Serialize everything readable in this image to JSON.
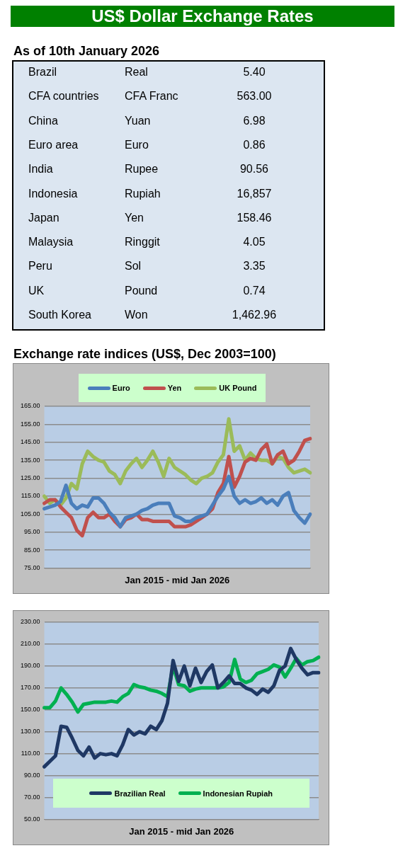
{
  "chart_data": [
    {
      "type": "other",
      "title": "US$ Dollar Exchange Rates",
      "subtitle": "As of 10th January 2026",
      "annotations": [
        "Brazil",
        "Real",
        "5.40",
        "CFA countries",
        "CFA Franc",
        "563.00",
        "China",
        "Yuan",
        "6.98",
        "Euro area",
        "Euro",
        "0.86",
        "India",
        "Rupee",
        "90.56",
        "Indonesia",
        "Rupiah",
        "16,857",
        "Japan",
        "Yen",
        "158.46",
        "Malaysia",
        "Ringgit",
        "4.05",
        "Peru",
        "Sol",
        "3.35",
        "UK",
        "Pound",
        "0.74",
        "South Korea",
        "Won",
        "1,462.96"
      ]
    },
    {
      "type": "line",
      "title": "Exchange rate indices (US$, Dec 2003=100)",
      "xlabel": "Jan 2015 - mid Jan 2026",
      "categories": [
        null,
        null,
        null,
        null,
        null,
        null,
        null,
        null,
        null,
        null,
        null,
        null,
        null,
        null,
        null,
        null,
        null,
        null,
        null,
        null,
        null,
        null,
        null,
        null,
        null,
        null,
        null,
        null,
        null,
        null,
        null,
        null,
        null,
        null,
        null,
        null,
        null,
        null,
        null,
        null,
        null,
        null,
        null,
        null,
        null,
        null,
        null,
        null,
        null,
        null
      ],
      "series": [
        {
          "name": "Euro",
          "color": "#4a7ebb",
          "values": [
            108,
            109,
            110,
            112,
            121,
            111,
            108,
            110,
            109,
            114,
            114,
            111,
            106,
            103,
            98,
            103,
            104,
            105,
            107,
            108,
            110,
            111,
            111,
            111,
            104,
            103,
            101,
            101,
            103,
            104,
            105,
            110,
            115,
            119,
            126,
            115,
            111,
            113,
            111,
            112,
            114,
            111,
            113,
            110,
            115,
            117,
            107,
            103,
            100,
            105
          ]
        },
        {
          "name": "Yen",
          "color": "#c0504d",
          "values": [
            111,
            113,
            113,
            109,
            106,
            103,
            96,
            93,
            103,
            106,
            103,
            103,
            105,
            101,
            98,
            102,
            103,
            105,
            102,
            102,
            101,
            101,
            101,
            101,
            98,
            98,
            98,
            99,
            101,
            103,
            105,
            108,
            117,
            122,
            137,
            120,
            126,
            134,
            136,
            135,
            141,
            144,
            133,
            138,
            140,
            133,
            135,
            140,
            146,
            147
          ]
        },
        {
          "name": "UK Pound",
          "color": "#9bbb59",
          "values": [
            115,
            111,
            113,
            110,
            114,
            122,
            119,
            133,
            140,
            137,
            135,
            134,
            129,
            127,
            122,
            129,
            133,
            136,
            131,
            135,
            140,
            134,
            126,
            136,
            131,
            129,
            127,
            124,
            122,
            125,
            126,
            128,
            134,
            138,
            158,
            140,
            143,
            135,
            139,
            136,
            135,
            135,
            133,
            137,
            136,
            131,
            128,
            129,
            130,
            128
          ]
        }
      ],
      "ylim": [
        75,
        165
      ],
      "yticks": [
        {
          "value": 75,
          "label": "75.00"
        },
        {
          "value": 85,
          "label": "85.00"
        },
        {
          "value": 95,
          "label": "95.00"
        },
        {
          "value": 105,
          "label": "105.00"
        },
        {
          "value": 115,
          "label": "115.00"
        },
        {
          "value": 125,
          "label": "125.00"
        },
        {
          "value": 135,
          "label": "135.00"
        },
        {
          "value": 145,
          "label": "145.00"
        },
        {
          "value": 155,
          "label": "155.00"
        },
        {
          "value": 165,
          "label": "165.00"
        }
      ],
      "grid": "y",
      "legend": "top",
      "tick_labels": "y"
    },
    {
      "type": "line",
      "xlabel": "Jan 2015 - mid Jan 2026",
      "categories": [
        null,
        null,
        null,
        null,
        null,
        null,
        null,
        null,
        null,
        null,
        null,
        null,
        null,
        null,
        null,
        null,
        null,
        null,
        null,
        null,
        null,
        null,
        null,
        null,
        null,
        null,
        null,
        null,
        null,
        null,
        null,
        null,
        null,
        null,
        null,
        null,
        null,
        null,
        null,
        null,
        null,
        null,
        null,
        null,
        null,
        null,
        null,
        null,
        null,
        null
      ],
      "series": [
        {
          "name": "Brazilian Real",
          "color": "#1f3864",
          "values": [
            98,
            103,
            108,
            135,
            134,
            124,
            113,
            108,
            116,
            106,
            110,
            109,
            110,
            108,
            118,
            132,
            127,
            130,
            128,
            135,
            132,
            140,
            156,
            195,
            176,
            190,
            172,
            188,
            175,
            185,
            191,
            170,
            175,
            181,
            174,
            174,
            170,
            168,
            164,
            169,
            166,
            172,
            186,
            190,
            206,
            196,
            188,
            182,
            184,
            184
          ]
        },
        {
          "name": "Indonesian Rupiah",
          "color": "#00b050",
          "values": [
            152,
            152,
            158,
            170,
            164,
            157,
            148,
            155,
            156,
            157,
            157,
            157,
            158,
            157,
            162,
            165,
            173,
            171,
            170,
            168,
            167,
            165,
            162,
            190,
            173,
            172,
            167,
            169,
            170,
            170,
            170,
            170,
            171,
            175,
            196,
            178,
            175,
            177,
            183,
            185,
            187,
            191,
            189,
            180,
            188,
            197,
            191,
            194,
            195,
            198
          ]
        }
      ],
      "ylim": [
        50,
        230
      ],
      "yticks": [
        {
          "value": 50,
          "label": "50.00"
        },
        {
          "value": 70,
          "label": "70.00"
        },
        {
          "value": 90,
          "label": "90.00"
        },
        {
          "value": 110,
          "label": "110.00"
        },
        {
          "value": 130,
          "label": "130.00"
        },
        {
          "value": 150,
          "label": "150.00"
        },
        {
          "value": 170,
          "label": "170.00"
        },
        {
          "value": 190,
          "label": "190.00"
        },
        {
          "value": 210,
          "label": "210.00"
        },
        {
          "value": 230,
          "label": "230.00"
        }
      ],
      "grid": "y",
      "legend": "bottom",
      "tick_labels": "y"
    }
  ]
}
